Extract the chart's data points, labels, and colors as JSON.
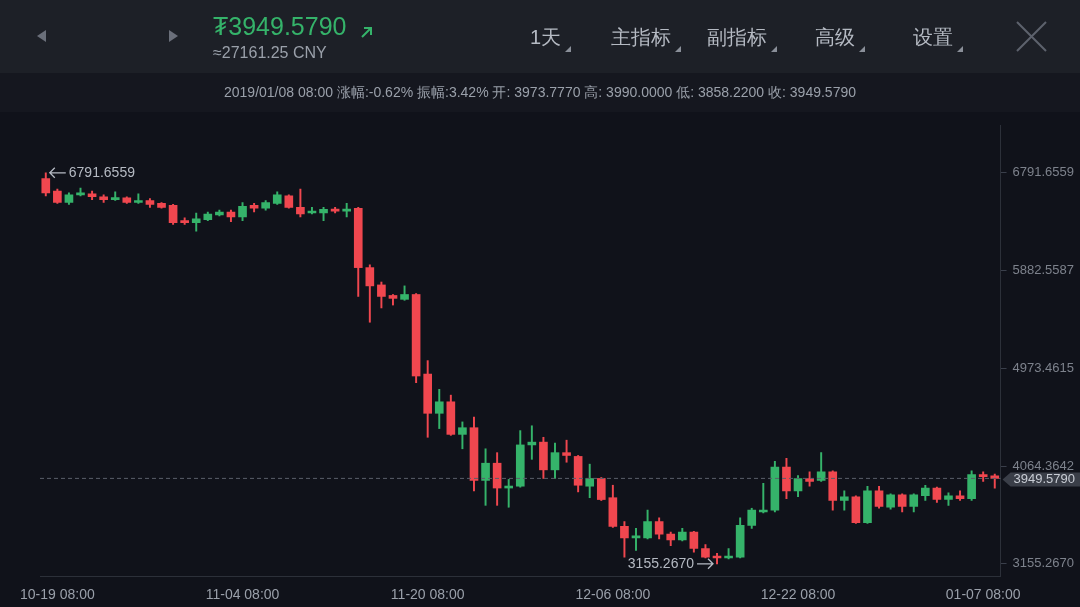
{
  "chart_data": {
    "type": "candlestick",
    "title": "₮3949.5790",
    "subtitle": "≈27161.25 CNY",
    "annotations": [
      "2019/01/08 08:00 涨幅:-0.62% 振幅:3.42% 开: 3973.7770 高: 3990.0000 低: 3858.2200 收: 3949.5790",
      "1天",
      "主指标",
      "副指标",
      "高级",
      "设置",
      "6791.6559",
      "3155.2670"
    ],
    "categories": [
      null,
      "10-19 08:00",
      null,
      null,
      null,
      null,
      null,
      null,
      null,
      null,
      null,
      null,
      null,
      null,
      null,
      null,
      null,
      "11-04 08:00",
      null,
      null,
      null,
      null,
      null,
      null,
      null,
      null,
      null,
      null,
      null,
      null,
      null,
      null,
      null,
      "11-20 08:00",
      null,
      null,
      null,
      null,
      null,
      null,
      null,
      null,
      null,
      null,
      null,
      null,
      null,
      null,
      null,
      "12-06 08:00",
      null,
      null,
      null,
      null,
      null,
      null,
      null,
      null,
      null,
      null,
      null,
      null,
      null,
      null,
      null,
      "12-22 08:00",
      null,
      null,
      null,
      null,
      null,
      null,
      null,
      null,
      null,
      null,
      null,
      null,
      null,
      null,
      null,
      "01-07 08:00",
      null
    ],
    "ohlc": [
      [
        6738,
        6791.6559,
        6578,
        6605
      ],
      [
        6623,
        6640,
        6507,
        6516
      ],
      [
        6516,
        6605,
        6498,
        6587
      ],
      [
        6587,
        6649,
        6578,
        6596
      ],
      [
        6596,
        6623,
        6542,
        6569
      ],
      [
        6569,
        6587,
        6516,
        6542
      ],
      [
        6542,
        6614,
        6534,
        6560
      ],
      [
        6560,
        6569,
        6507,
        6516
      ],
      [
        6516,
        6596,
        6507,
        6534
      ],
      [
        6534,
        6551,
        6471,
        6498
      ],
      [
        6507,
        6516,
        6462,
        6471
      ],
      [
        6489,
        6498,
        6311,
        6328
      ],
      [
        6346,
        6373,
        6311,
        6328
      ],
      [
        6328,
        6418,
        6248,
        6364
      ],
      [
        6355,
        6427,
        6346,
        6409
      ],
      [
        6400,
        6444,
        6391,
        6427
      ],
      [
        6427,
        6444,
        6337,
        6382
      ],
      [
        6382,
        6516,
        6346,
        6480
      ],
      [
        6489,
        6507,
        6427,
        6462
      ],
      [
        6462,
        6534,
        6444,
        6516
      ],
      [
        6507,
        6614,
        6498,
        6587
      ],
      [
        6578,
        6587,
        6462,
        6471
      ],
      [
        6471,
        6640,
        6382,
        6409
      ],
      [
        6418,
        6471,
        6409,
        6435
      ],
      [
        6418,
        6471,
        6346,
        6453
      ],
      [
        6453,
        6471,
        6418,
        6435
      ],
      [
        6435,
        6507,
        6382,
        6453
      ],
      [
        6462,
        6471,
        5642,
        5910
      ],
      [
        5910,
        5936,
        5402,
        5740
      ],
      [
        5749,
        5776,
        5535,
        5642
      ],
      [
        5651,
        5660,
        5562,
        5624
      ],
      [
        5615,
        5740,
        5606,
        5660
      ],
      [
        5660,
        5669,
        4840,
        4902
      ],
      [
        4920,
        5045,
        4332,
        4555
      ],
      [
        4555,
        4778,
        4413,
        4662
      ],
      [
        4662,
        4724,
        4350,
        4359
      ],
      [
        4359,
        4475,
        4225,
        4421
      ],
      [
        4421,
        4519,
        3833,
        3931
      ],
      [
        3931,
        4225,
        3699,
        4091
      ],
      [
        4091,
        4189,
        3699,
        3860
      ],
      [
        3860,
        3940,
        3681,
        3877
      ],
      [
        3877,
        4394,
        3868,
        4261
      ],
      [
        4261,
        4439,
        4127,
        4287
      ],
      [
        4287,
        4332,
        3949,
        4029
      ],
      [
        4029,
        4279,
        3949,
        4189
      ],
      [
        4189,
        4305,
        4100,
        4163
      ],
      [
        4154,
        4163,
        3824,
        3886
      ],
      [
        3877,
        4082,
        3770,
        3949
      ],
      [
        3949,
        3958,
        3744,
        3753
      ],
      [
        3770,
        3886,
        3494,
        3503
      ],
      [
        3503,
        3548,
        3218,
        3396
      ],
      [
        3396,
        3485,
        3280,
        3405
      ],
      [
        3396,
        3655,
        3387,
        3548
      ],
      [
        3548,
        3583,
        3387,
        3432
      ],
      [
        3432,
        3450,
        3325,
        3378
      ],
      [
        3378,
        3485,
        3369,
        3450
      ],
      [
        3450,
        3458,
        3263,
        3298
      ],
      [
        3298,
        3334,
        3209,
        3218
      ],
      [
        3218,
        3253,
        3155.267,
        3209
      ],
      [
        3209,
        3298,
        3200,
        3227
      ],
      [
        3218,
        3583,
        3209,
        3512
      ],
      [
        3512,
        3672,
        3485,
        3655
      ],
      [
        3637,
        3904,
        3628,
        3655
      ],
      [
        3655,
        4109,
        3637,
        4056
      ],
      [
        4056,
        4136,
        3761,
        3833
      ],
      [
        3833,
        3975,
        3779,
        3949
      ],
      [
        3949,
        4011,
        3877,
        3922
      ],
      [
        3931,
        4189,
        3922,
        4011
      ],
      [
        4011,
        4020,
        3655,
        3744
      ],
      [
        3744,
        3833,
        3655,
        3779
      ],
      [
        3779,
        3788,
        3530,
        3539
      ],
      [
        3539,
        3877,
        3530,
        3833
      ],
      [
        3833,
        3877,
        3672,
        3690
      ],
      [
        3681,
        3806,
        3663,
        3797
      ],
      [
        3797,
        3806,
        3637,
        3690
      ],
      [
        3690,
        3806,
        3637,
        3797
      ],
      [
        3788,
        3886,
        3744,
        3860
      ],
      [
        3860,
        3868,
        3726,
        3753
      ],
      [
        3753,
        3815,
        3699,
        3788
      ],
      [
        3788,
        3833,
        3744,
        3761
      ],
      [
        3761,
        4020,
        3744,
        3984
      ],
      [
        3984,
        4011,
        3922,
        3966
      ],
      [
        3973.777,
        3990,
        3858.22,
        3949.579
      ]
    ],
    "ylim": [
      3040,
      7229
    ],
    "yticks": [
      {
        "value": 6791.6559,
        "label": "6791.6559"
      },
      {
        "value": 5882.5587,
        "label": "5882.5587"
      },
      {
        "value": 4973.4615,
        "label": "4973.4615"
      },
      {
        "value": 4064.3642,
        "label": "4064.3642"
      },
      {
        "value": 3155.267,
        "label": "3155.2670"
      }
    ],
    "ref_lines": [
      {
        "axis": "y",
        "value": 3949.579,
        "label": "3949.5790",
        "line_style": "dashed",
        "color": "#5a5f6a"
      }
    ],
    "grid": false
  }
}
